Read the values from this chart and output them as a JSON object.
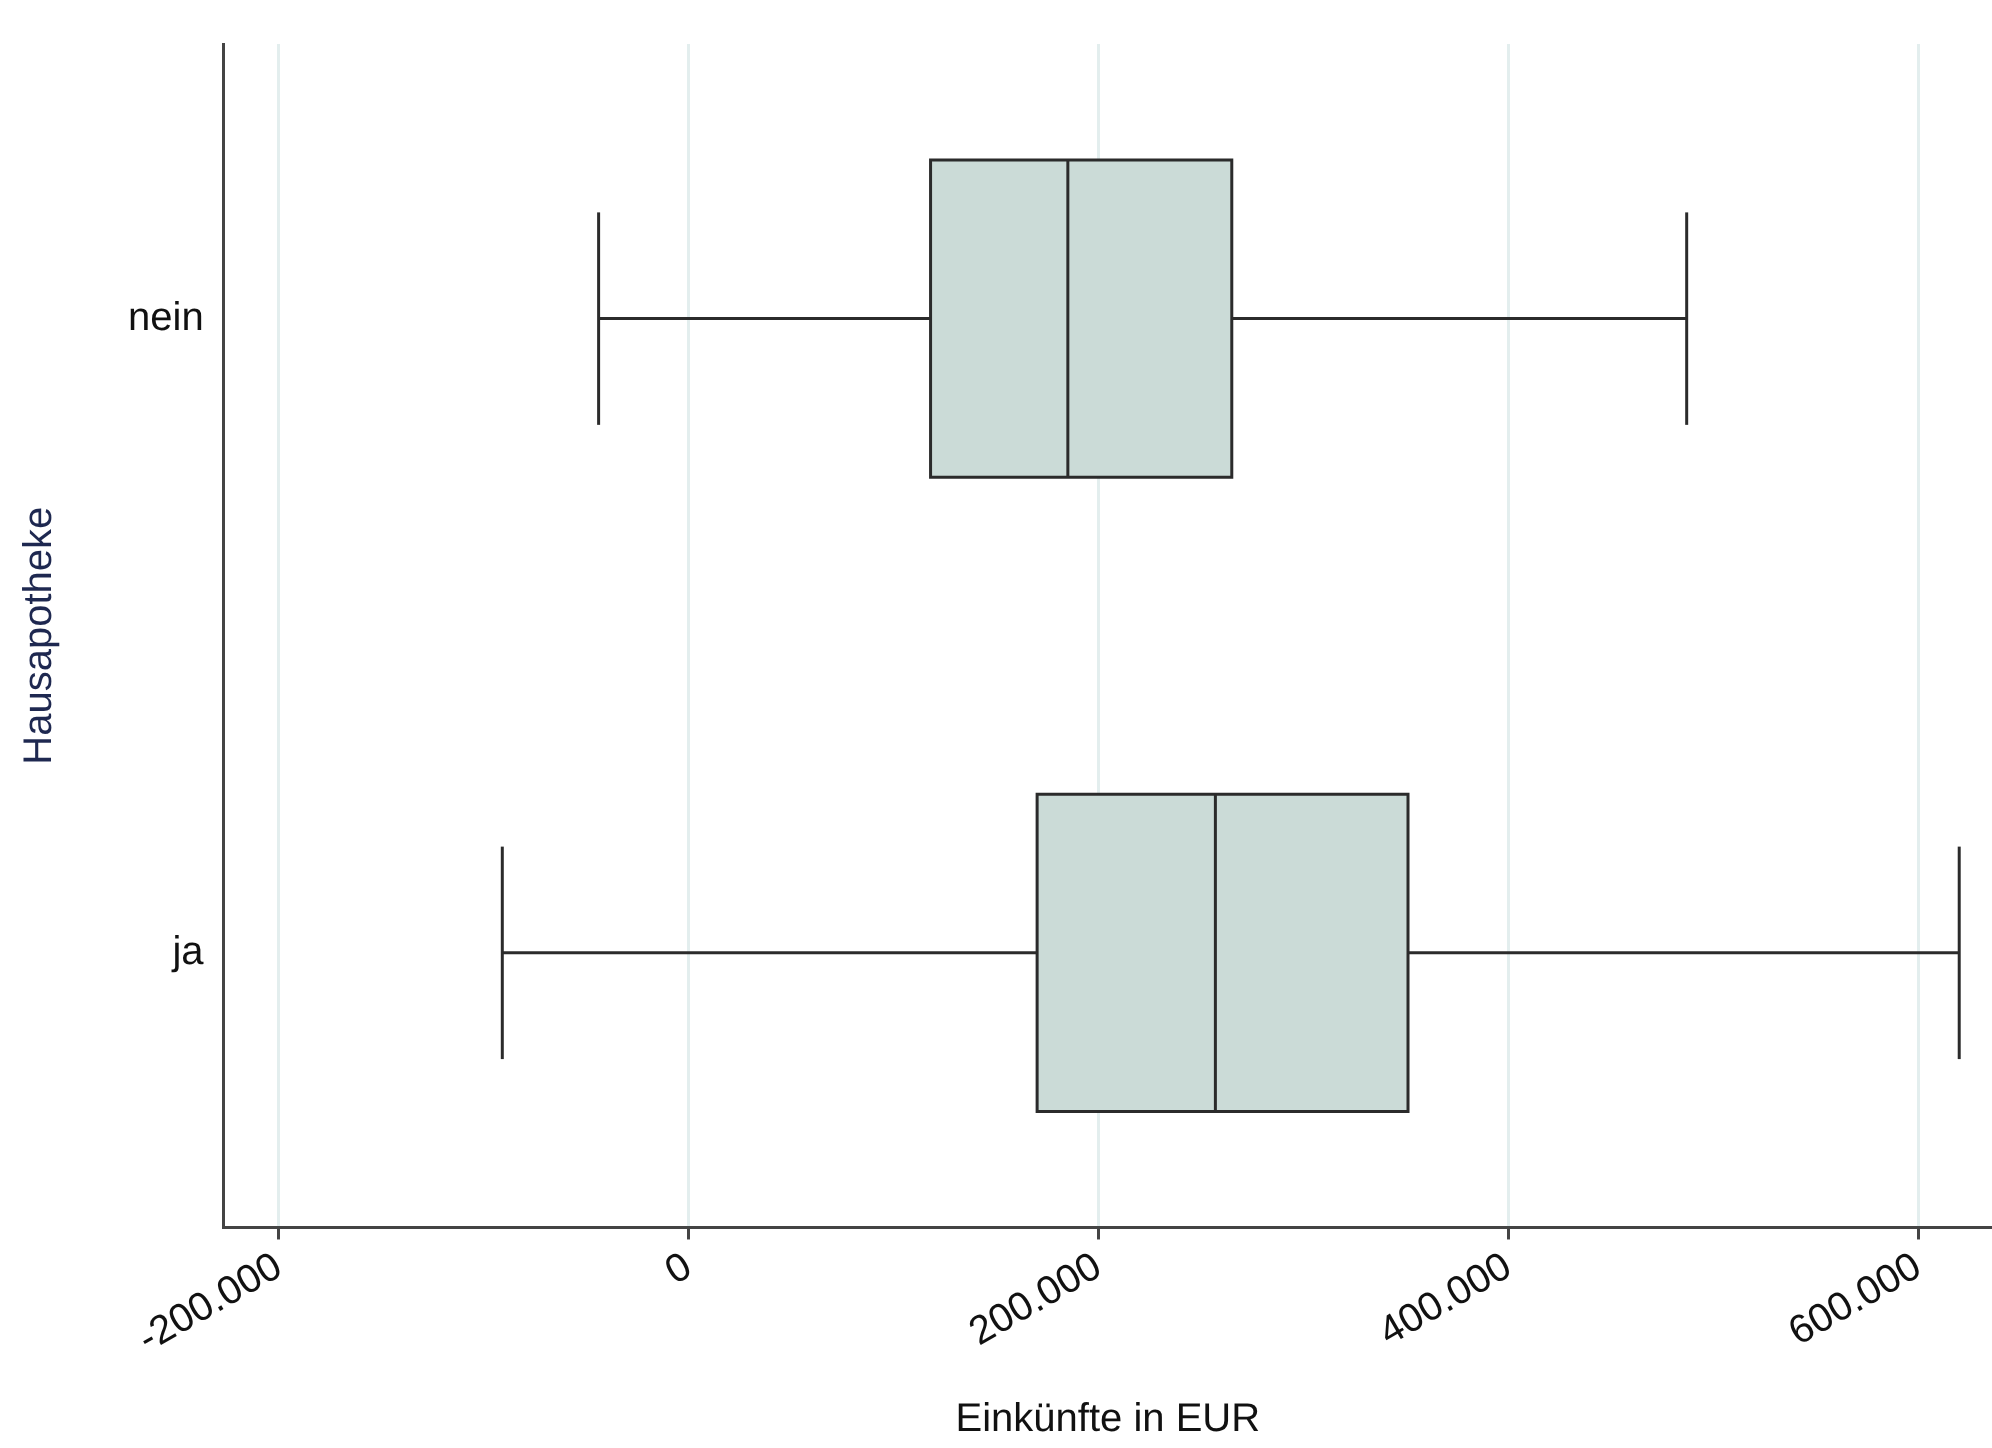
{
  "chart_data": {
    "type": "box",
    "orientation": "horizontal",
    "categories": [
      "nein",
      "ja"
    ],
    "xlabel": "Einkünfte in EUR",
    "ylabel": "Hausapotheke",
    "color": "#cbdbd7",
    "boxes": [
      {
        "low": -44000,
        "q1": 118000,
        "median": 185000,
        "q3": 265000,
        "high": 487000
      },
      {
        "low": -91000,
        "q1": 170000,
        "median": 257000,
        "q3": 351000,
        "high": 620000
      }
    ],
    "xlim": [
      -227000,
      636000
    ],
    "xticks": [
      {
        "value": -200000,
        "label": "-200.000"
      },
      0,
      {
        "value": 200000,
        "label": "200.000"
      },
      {
        "value": 400000,
        "label": "400.000"
      },
      {
        "value": 600000,
        "label": "600.000"
      }
    ],
    "grid": "x"
  }
}
